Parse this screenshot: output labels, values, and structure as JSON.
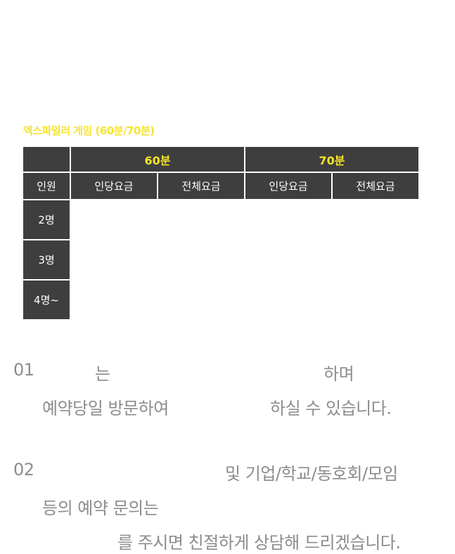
{
  "section_title": "엑스파일러 게임 (60분/70분)",
  "table": {
    "durations": [
      "60분",
      "70분"
    ],
    "sub_headers": {
      "people": "인원",
      "per_person": "인당요금",
      "total": "전체요금"
    },
    "rows": [
      "2명",
      "3명",
      "4명~"
    ]
  },
  "notes": {
    "n1_num": "01",
    "n1_a": "는",
    "n1_b": "하며",
    "n1_c": "예약당일 방문하여",
    "n1_d": "하실 수 있습니다.",
    "n2_num": "02",
    "n2_a": "및 기업/학교/동호회/모임",
    "n2_b": "등의 예약 문의는",
    "n2_c": "를 주시면 친절하게 상담해 드리겠습니다."
  },
  "colors": {
    "header_bg": "#3e3e3e",
    "accent_yellow": "#f7e42a",
    "note_gray": "#8c8c8c"
  }
}
